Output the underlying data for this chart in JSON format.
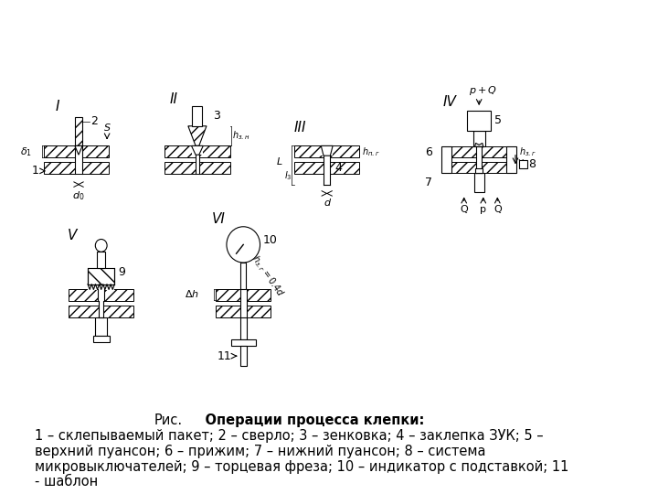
{
  "title_prefix": "Рис.",
  "title_bold": "    Операции процесса клепки:",
  "caption_lines": [
    "1 – склепываемый пакет; 2 – сверло; 3 – зенковка; 4 – заклепка ЗУК; 5 –",
    "верхний пуансон; 6 – прижим; 7 – нижний пуансон; 8 – система",
    "микровыключателей; 9 – торцевая фреза; 10 – индикатор с подставкой; 11",
    "- шаблон"
  ],
  "bg_color": "#ffffff",
  "text_color": "#000000",
  "fig_width": 7.2,
  "fig_height": 5.4,
  "dpi": 100,
  "caption_fontsize": 10.5,
  "title_fontsize": 10.5
}
